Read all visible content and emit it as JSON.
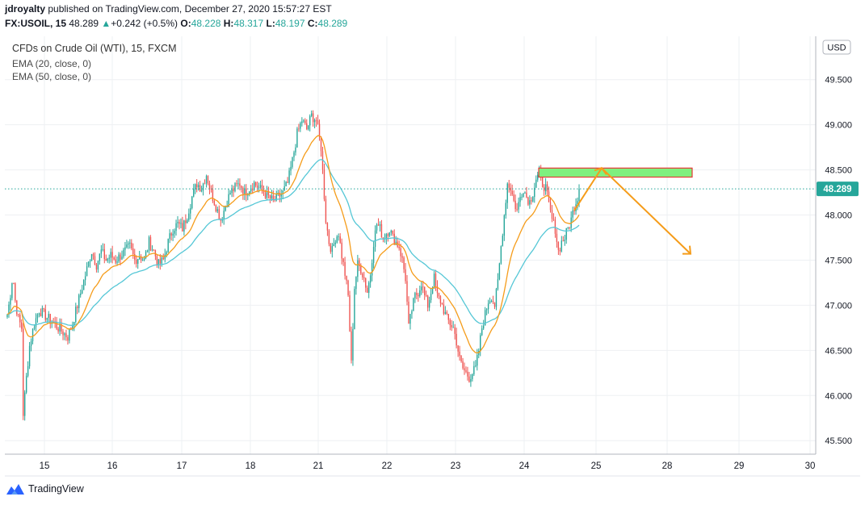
{
  "publisher": {
    "user": "jdroyalty",
    "text": "published on TradingView.com, December 27, 2020 15:57:27 EST"
  },
  "quote": {
    "symbol": "FX:USOIL, 15",
    "last": "48.289",
    "change": "+0.242 (+0.5%)",
    "o_label": "O:",
    "o": "48.228",
    "h_label": "H:",
    "h": "48.317",
    "l_label": "L:",
    "l": "48.197",
    "c_label": "C:",
    "c": "48.289"
  },
  "legend": {
    "main": "CFDs on Crude Oil (WTI), 15, FXCM",
    "ema20": "EMA (20, close, 0)",
    "ema50": "EMA (50, close, 0)"
  },
  "brand": {
    "name": "TradingView"
  },
  "colors": {
    "up": "#26a69a",
    "down": "#ef5350",
    "ema20": "#f59c1a",
    "ema50": "#55c7d6",
    "grid": "#eef0f3",
    "axis": "#9598a1",
    "price_badge": "#26a69a",
    "zone_fill": "#7ff07f",
    "zone_border": "#e53935",
    "arrow": "#f59c1a"
  },
  "chart_data": {
    "type": "candlestick",
    "currency": "USD",
    "y_ticks": [
      "49.500",
      "49.000",
      "48.500",
      "48.000",
      "47.500",
      "47.000",
      "46.500",
      "46.000",
      "45.500"
    ],
    "y_tick_values": [
      49.5,
      49.0,
      48.5,
      48.0,
      47.5,
      47.0,
      46.5,
      46.0,
      45.5
    ],
    "ylim": [
      45.35,
      49.98
    ],
    "x_ticks": [
      "15",
      "16",
      "17",
      "18",
      "21",
      "22",
      "23",
      "24",
      "25",
      "28",
      "29",
      "30"
    ],
    "last_price_label": "48.289",
    "last_price": 48.289,
    "price_path": [
      [
        0,
        46.9
      ],
      [
        3,
        47.05
      ],
      [
        7,
        47.35
      ],
      [
        10,
        47.05
      ],
      [
        14,
        46.85
      ],
      [
        18,
        46.75
      ],
      [
        20,
        45.8
      ],
      [
        24,
        46.2
      ],
      [
        28,
        46.55
      ],
      [
        34,
        46.8
      ],
      [
        40,
        46.95
      ],
      [
        46,
        46.9
      ],
      [
        52,
        46.85
      ],
      [
        58,
        46.8
      ],
      [
        64,
        46.75
      ],
      [
        70,
        46.7
      ],
      [
        76,
        46.65
      ],
      [
        82,
        46.8
      ],
      [
        88,
        47.0
      ],
      [
        94,
        47.2
      ],
      [
        100,
        47.4
      ],
      [
        106,
        47.6
      ],
      [
        112,
        47.45
      ],
      [
        118,
        47.6
      ],
      [
        124,
        47.5
      ],
      [
        130,
        47.55
      ],
      [
        136,
        47.5
      ],
      [
        142,
        47.55
      ],
      [
        148,
        47.6
      ],
      [
        154,
        47.65
      ],
      [
        160,
        47.5
      ],
      [
        166,
        47.55
      ],
      [
        172,
        47.5
      ],
      [
        178,
        47.7
      ],
      [
        184,
        47.6
      ],
      [
        190,
        47.45
      ],
      [
        196,
        47.5
      ],
      [
        202,
        47.7
      ],
      [
        208,
        47.85
      ],
      [
        214,
        47.9
      ],
      [
        220,
        47.85
      ],
      [
        226,
        48.0
      ],
      [
        232,
        48.2
      ],
      [
        238,
        48.35
      ],
      [
        244,
        48.3
      ],
      [
        250,
        48.45
      ],
      [
        256,
        48.25
      ],
      [
        262,
        48.1
      ],
      [
        268,
        47.95
      ],
      [
        274,
        48.1
      ],
      [
        280,
        48.25
      ],
      [
        286,
        48.3
      ],
      [
        292,
        48.35
      ],
      [
        298,
        48.25
      ],
      [
        304,
        48.3
      ],
      [
        310,
        48.35
      ],
      [
        316,
        48.3
      ],
      [
        322,
        48.25
      ],
      [
        328,
        48.2
      ],
      [
        334,
        48.15
      ],
      [
        340,
        48.2
      ],
      [
        346,
        48.25
      ],
      [
        352,
        48.35
      ],
      [
        358,
        48.6
      ],
      [
        364,
        48.9
      ],
      [
        370,
        49.05
      ],
      [
        376,
        48.95
      ],
      [
        382,
        49.1
      ],
      [
        388,
        49.05
      ],
      [
        394,
        48.75
      ],
      [
        400,
        47.95
      ],
      [
        404,
        47.7
      ],
      [
        408,
        47.6
      ],
      [
        412,
        47.75
      ],
      [
        416,
        47.8
      ],
      [
        420,
        47.55
      ],
      [
        424,
        47.35
      ],
      [
        428,
        47.1
      ],
      [
        432,
        46.35
      ],
      [
        436,
        47.2
      ],
      [
        440,
        47.45
      ],
      [
        444,
        47.4
      ],
      [
        448,
        47.3
      ],
      [
        452,
        47.15
      ],
      [
        456,
        47.35
      ],
      [
        460,
        47.7
      ],
      [
        464,
        47.9
      ],
      [
        468,
        47.85
      ],
      [
        472,
        47.75
      ],
      [
        476,
        47.8
      ],
      [
        480,
        47.85
      ],
      [
        484,
        47.75
      ],
      [
        488,
        47.7
      ],
      [
        492,
        47.65
      ],
      [
        496,
        47.5
      ],
      [
        500,
        47.3
      ],
      [
        504,
        46.75
      ],
      [
        508,
        46.95
      ],
      [
        512,
        47.1
      ],
      [
        516,
        47.15
      ],
      [
        520,
        47.25
      ],
      [
        524,
        47.1
      ],
      [
        528,
        47.0
      ],
      [
        532,
        47.15
      ],
      [
        536,
        47.3
      ],
      [
        540,
        47.1
      ],
      [
        544,
        47.05
      ],
      [
        548,
        46.95
      ],
      [
        552,
        46.85
      ],
      [
        556,
        46.8
      ],
      [
        560,
        46.75
      ],
      [
        564,
        46.6
      ],
      [
        568,
        46.4
      ],
      [
        572,
        46.3
      ],
      [
        576,
        46.25
      ],
      [
        580,
        46.2
      ],
      [
        584,
        46.25
      ],
      [
        588,
        46.3
      ],
      [
        592,
        46.5
      ],
      [
        596,
        46.75
      ],
      [
        600,
        46.9
      ],
      [
        604,
        47.05
      ],
      [
        608,
        47.1
      ],
      [
        612,
        47.0
      ],
      [
        616,
        47.25
      ],
      [
        620,
        47.65
      ],
      [
        624,
        48.0
      ],
      [
        628,
        48.35
      ],
      [
        632,
        48.3
      ],
      [
        636,
        48.15
      ],
      [
        640,
        48.05
      ],
      [
        644,
        48.2
      ],
      [
        648,
        48.3
      ],
      [
        652,
        48.2
      ],
      [
        656,
        48.15
      ],
      [
        660,
        48.25
      ],
      [
        664,
        48.4
      ],
      [
        668,
        48.45
      ],
      [
        672,
        48.35
      ],
      [
        676,
        48.3
      ],
      [
        680,
        48.1
      ],
      [
        684,
        47.95
      ],
      [
        688,
        47.85
      ],
      [
        692,
        47.6
      ],
      [
        696,
        47.7
      ],
      [
        700,
        47.75
      ],
      [
        704,
        47.85
      ],
      [
        708,
        47.95
      ],
      [
        712,
        48.1
      ],
      [
        716,
        48.2
      ],
      [
        718,
        48.289
      ]
    ],
    "annotations": {
      "zone": {
        "price_top": 48.52,
        "price_bottom": 48.42
      },
      "arrow_up_from": 48.05,
      "arrow_peak": 48.52,
      "arrow_down_to": 47.57
    }
  }
}
